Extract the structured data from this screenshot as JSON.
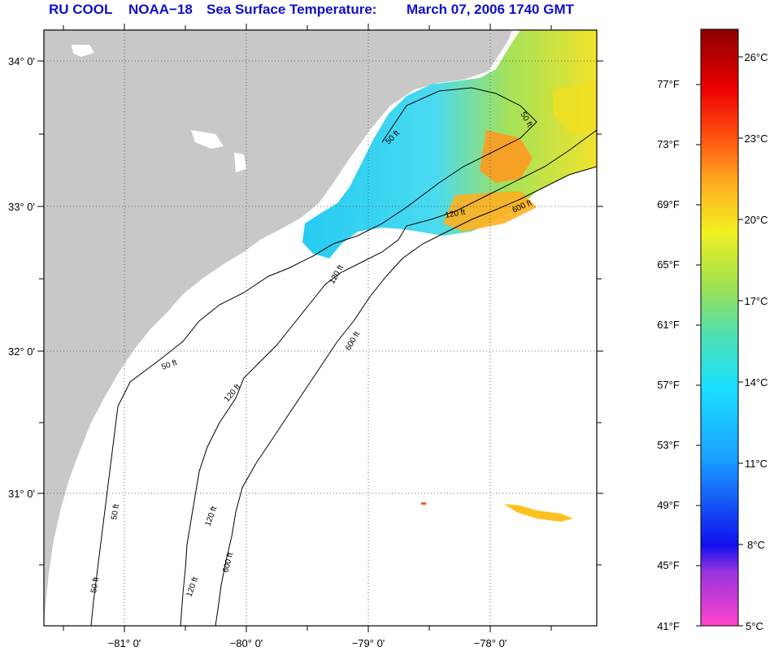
{
  "title": {
    "source": "RU COOL",
    "satellite": "NOAA−18",
    "product": "Sea Surface Temperature:",
    "date": "March 07, 2006 1740 GMT"
  },
  "map": {
    "land_color": "#c8c8c8",
    "ocean_color": "#ffffff",
    "longitude_labels": [
      "−81° 0'",
      "−80° 0'",
      "−79° 0'",
      "−78° 0'"
    ],
    "latitude_labels": [
      "34° 0'",
      "33° 0'",
      "32° 0'",
      "31° 0'"
    ],
    "contours": {
      "c50": "50 ft",
      "c120": "120 ft",
      "c600": "600 ft"
    }
  },
  "colorbar": {
    "fahrenheit_labels": [
      "77°F",
      "73°F",
      "69°F",
      "65°F",
      "61°F",
      "57°F",
      "53°F",
      "49°F",
      "45°F",
      "41°F"
    ],
    "celsius_labels": [
      "26°C",
      "23°C",
      "20°C",
      "17°C",
      "14°C",
      "11°C",
      "8°C",
      "5°C"
    ],
    "range_celsius": [
      5,
      28
    ],
    "colors": [
      "#ff44cc",
      "#9933dd",
      "#1010ee",
      "#1aa0ff",
      "#1ae0ff",
      "#50e0b0",
      "#a0e050",
      "#f0f020",
      "#ffb020",
      "#ff5010",
      "#ee0000",
      "#8b0000"
    ]
  }
}
